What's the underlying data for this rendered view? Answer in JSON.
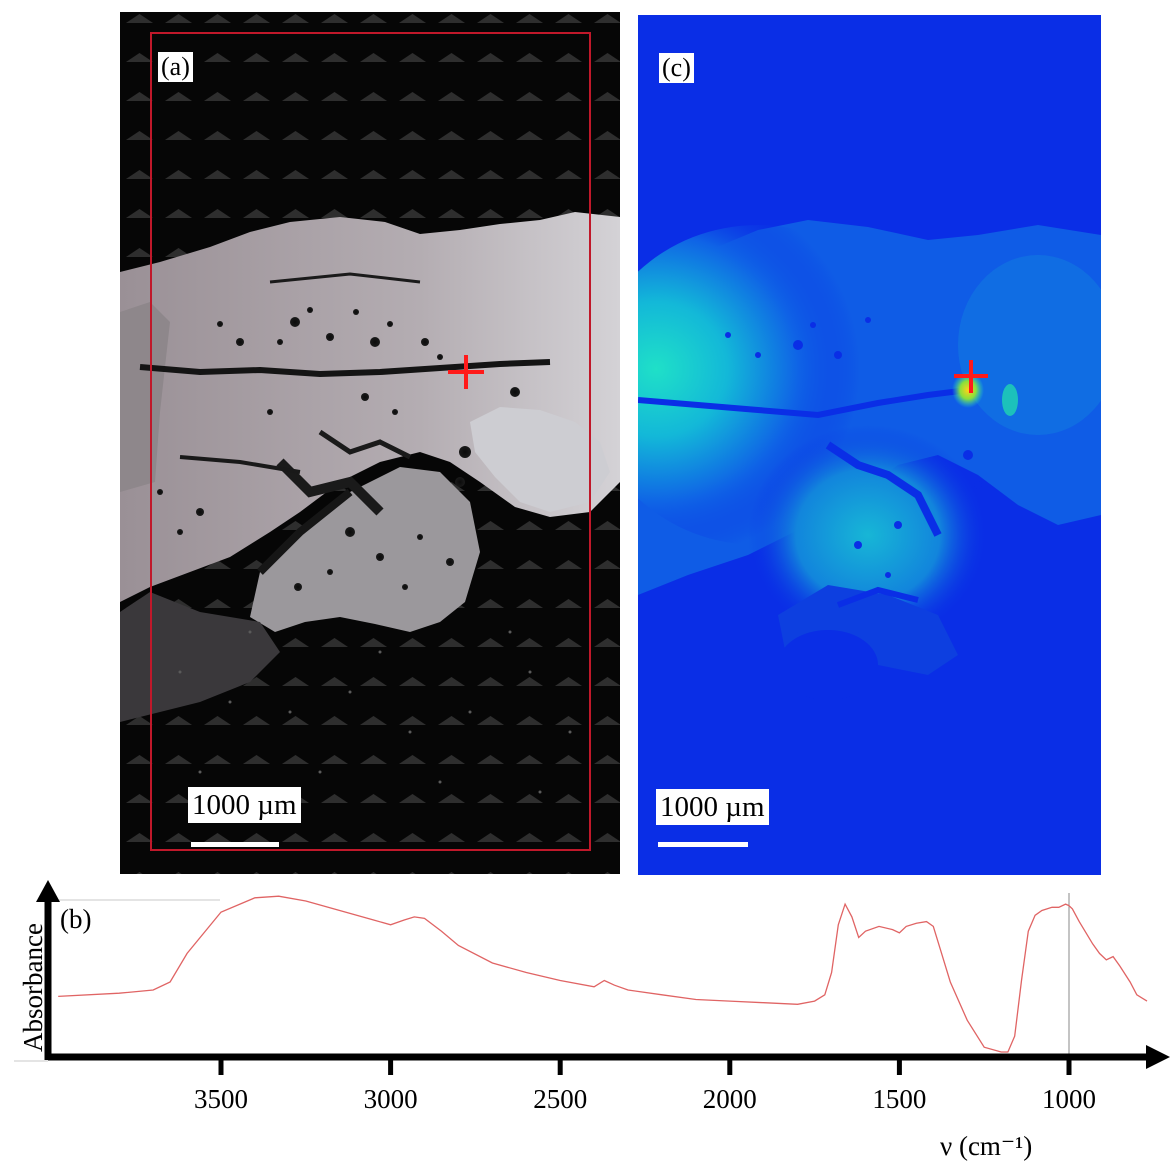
{
  "panels": {
    "a": {
      "label": "(a)",
      "scale_label": "1000 µm",
      "roi_color": "#c0182a",
      "marker_color": "#ff1a1a"
    },
    "c": {
      "label": "(c)",
      "scale_label": "1000 µm",
      "marker_color": "#ff1a1a"
    }
  },
  "colors": {
    "map_background": "#0a2ee6",
    "map_high": "#1fe0c8",
    "map_hotspot": "#ffd21a",
    "spectrum_line": "#e06464",
    "axis": "#000000"
  },
  "chart_data": {
    "type": "line",
    "panel_label": "(b)",
    "title": "",
    "xlabel": "ν (cm⁻¹)",
    "ylabel": "Absorbance",
    "x_reversed": true,
    "xlim": [
      4000,
      750
    ],
    "ylim": [
      0,
      1
    ],
    "xticks": [
      3500,
      3000,
      2500,
      2000,
      1500,
      1000
    ],
    "grid": false,
    "marker_line_x": 1000,
    "series": [
      {
        "color": "#e06464",
        "x": [
          3980,
          3800,
          3700,
          3650,
          3600,
          3500,
          3400,
          3330,
          3250,
          3150,
          3050,
          3000,
          2960,
          2930,
          2900,
          2850,
          2800,
          2700,
          2600,
          2500,
          2400,
          2370,
          2340,
          2300,
          2200,
          2100,
          2000,
          1900,
          1800,
          1750,
          1720,
          1700,
          1680,
          1660,
          1640,
          1620,
          1600,
          1560,
          1520,
          1500,
          1480,
          1450,
          1420,
          1400,
          1380,
          1350,
          1300,
          1250,
          1200,
          1180,
          1160,
          1140,
          1120,
          1100,
          1080,
          1050,
          1030,
          1010,
          1000,
          990,
          970,
          950,
          930,
          910,
          890,
          870,
          850,
          820,
          800,
          770
        ],
        "y": [
          0.35,
          0.37,
          0.39,
          0.44,
          0.62,
          0.88,
          0.97,
          0.98,
          0.95,
          0.89,
          0.83,
          0.8,
          0.83,
          0.85,
          0.84,
          0.76,
          0.67,
          0.56,
          0.5,
          0.45,
          0.41,
          0.45,
          0.42,
          0.39,
          0.36,
          0.33,
          0.32,
          0.31,
          0.3,
          0.32,
          0.36,
          0.5,
          0.8,
          0.93,
          0.85,
          0.72,
          0.76,
          0.79,
          0.77,
          0.75,
          0.79,
          0.81,
          0.82,
          0.79,
          0.65,
          0.44,
          0.2,
          0.03,
          0.0,
          0.0,
          0.1,
          0.45,
          0.76,
          0.86,
          0.89,
          0.91,
          0.91,
          0.93,
          0.92,
          0.9,
          0.82,
          0.75,
          0.68,
          0.62,
          0.58,
          0.6,
          0.54,
          0.44,
          0.36,
          0.32
        ]
      }
    ]
  }
}
